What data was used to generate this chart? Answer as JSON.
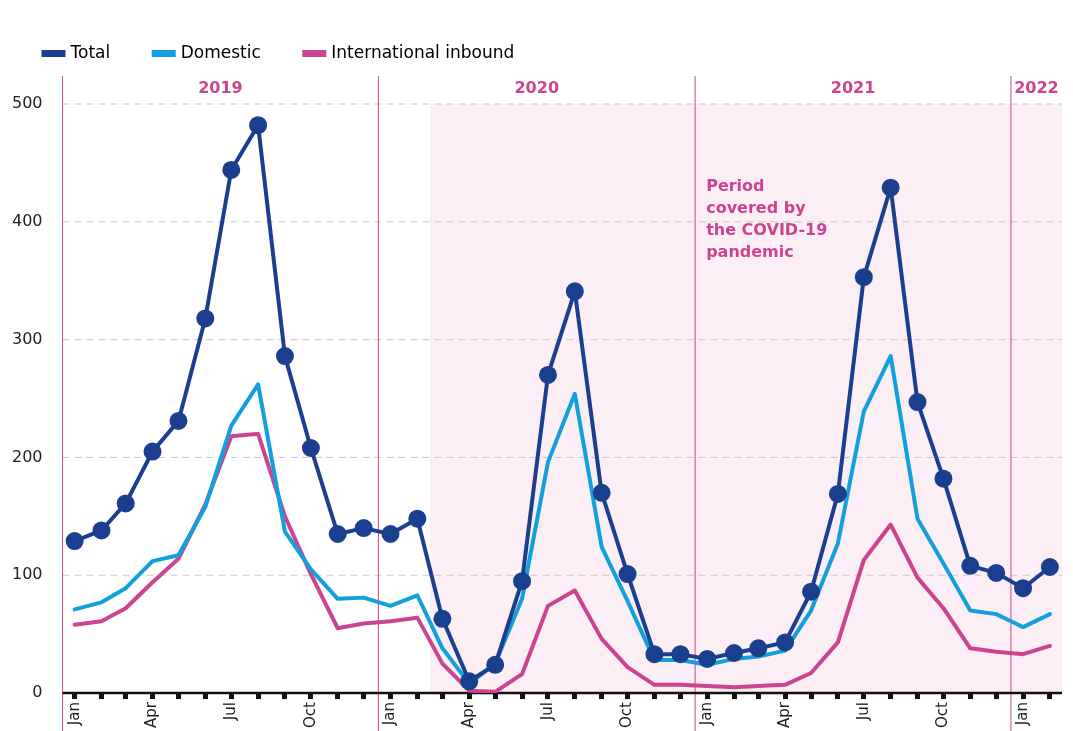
{
  "chart_data": {
    "type": "line",
    "x": [
      "2019-01-15",
      "2019-02-15",
      "2019-03-15",
      "2019-04-15",
      "2019-05-15",
      "2019-06-15",
      "2019-07-15",
      "2019-08-15",
      "2019-09-15",
      "2019-10-15",
      "2019-11-15",
      "2019-12-15",
      "2020-01-15",
      "2020-02-15",
      "2020-03-15",
      "2020-04-15",
      "2020-05-15",
      "2020-06-15",
      "2020-07-15",
      "2020-08-15",
      "2020-09-15",
      "2020-10-15",
      "2020-11-15",
      "2020-12-15",
      "2021-01-15",
      "2021-02-15",
      "2021-03-15",
      "2021-04-15",
      "2021-05-15",
      "2021-06-15",
      "2021-07-15",
      "2021-08-15",
      "2021-09-15",
      "2021-10-15",
      "2021-11-15",
      "2021-12-15",
      "2022-01-15",
      "2022-02-15"
    ],
    "series": [
      {
        "name": "Total",
        "color": "#1a3f8f",
        "marker": "circle",
        "values": [
          129,
          138,
          161,
          205,
          231,
          318,
          444,
          482,
          286,
          208,
          135,
          140,
          135,
          148,
          63,
          10,
          24,
          95,
          270,
          341,
          170,
          101,
          33,
          33,
          29,
          34,
          38,
          43,
          86,
          169,
          353,
          429,
          247,
          182,
          108,
          102,
          89,
          107
        ]
      },
      {
        "name": "Domestic",
        "color": "#11a0dc",
        "marker": "none",
        "values": [
          71,
          77,
          89,
          112,
          117,
          158,
          227,
          262,
          137,
          105,
          80,
          81,
          74,
          83,
          38,
          8,
          25,
          80,
          196,
          254,
          124,
          78,
          28,
          28,
          24,
          29,
          31,
          36,
          70,
          127,
          239,
          286,
          148,
          110,
          70,
          67,
          56,
          67
        ]
      },
      {
        "name": "International inbound",
        "color": "#cc4490",
        "marker": "none",
        "values": [
          58,
          61,
          72,
          94,
          114,
          160,
          218,
          220,
          150,
          101,
          55,
          59,
          61,
          64,
          25,
          2,
          1,
          16,
          74,
          87,
          46,
          22,
          7,
          7,
          6,
          5,
          6,
          7,
          17,
          43,
          113,
          143,
          98,
          72,
          38,
          35,
          33,
          40
        ]
      }
    ],
    "xlim": [
      "2019-01-01",
      "2022-03-01"
    ],
    "xticks": [
      {
        "value": "2019-01-15",
        "label": "Jan"
      },
      {
        "value": "2019-02-15",
        "label": null
      },
      {
        "value": "2019-03-15",
        "label": null
      },
      {
        "value": "2019-04-15",
        "label": "Apr"
      },
      {
        "value": "2019-05-15",
        "label": null
      },
      {
        "value": "2019-06-15",
        "label": null
      },
      {
        "value": "2019-07-15",
        "label": "Jul"
      },
      {
        "value": "2019-08-15",
        "label": null
      },
      {
        "value": "2019-09-15",
        "label": null
      },
      {
        "value": "2019-10-15",
        "label": "Oct"
      },
      {
        "value": "2019-11-15",
        "label": null
      },
      {
        "value": "2019-12-15",
        "label": null
      },
      {
        "value": "2020-01-15",
        "label": "Jan"
      },
      {
        "value": "2020-02-15",
        "label": null
      },
      {
        "value": "2020-03-15",
        "label": null
      },
      {
        "value": "2020-04-15",
        "label": "Apr"
      },
      {
        "value": "2020-05-15",
        "label": null
      },
      {
        "value": "2020-06-15",
        "label": null
      },
      {
        "value": "2020-07-15",
        "label": "Jul"
      },
      {
        "value": "2020-08-15",
        "label": null
      },
      {
        "value": "2020-09-15",
        "label": null
      },
      {
        "value": "2020-10-15",
        "label": "Oct"
      },
      {
        "value": "2020-11-15",
        "label": null
      },
      {
        "value": "2020-12-15",
        "label": null
      },
      {
        "value": "2021-01-15",
        "label": "Jan"
      },
      {
        "value": "2021-02-15",
        "label": null
      },
      {
        "value": "2021-03-15",
        "label": null
      },
      {
        "value": "2021-04-15",
        "label": "Apr"
      },
      {
        "value": "2021-05-15",
        "label": null
      },
      {
        "value": "2021-06-15",
        "label": null
      },
      {
        "value": "2021-07-15",
        "label": "Jul"
      },
      {
        "value": "2021-08-15",
        "label": null
      },
      {
        "value": "2021-09-15",
        "label": null
      },
      {
        "value": "2021-10-15",
        "label": "Oct"
      },
      {
        "value": "2021-11-15",
        "label": null
      },
      {
        "value": "2021-12-15",
        "label": null
      },
      {
        "value": "2022-01-15",
        "label": "Jan"
      },
      {
        "value": "2022-02-15",
        "label": null
      }
    ],
    "ylim": [
      0,
      500
    ],
    "yticks": [
      0,
      100,
      200,
      300,
      400,
      500
    ],
    "grid": "y",
    "legend": "top left",
    "line_style": "solid",
    "ref_lines": [
      {
        "axis": "x",
        "value": "2019-01-01",
        "label": "2019",
        "color": "#cc4490"
      },
      {
        "axis": "x",
        "value": "2020-01-01",
        "label": "2020",
        "color": "#cc4490"
      },
      {
        "axis": "x",
        "value": "2021-01-01",
        "label": "2021",
        "color": "#cc4490"
      },
      {
        "axis": "x",
        "value": "2022-01-01",
        "label": "2022",
        "color": "#cc4490"
      }
    ],
    "bands": [
      {
        "axis": "x",
        "from": "2020-03-01",
        "to": "2022-03-01",
        "label": "Period covered by the COVID-19 pandemic",
        "color": "#fbeef4"
      }
    ]
  }
}
